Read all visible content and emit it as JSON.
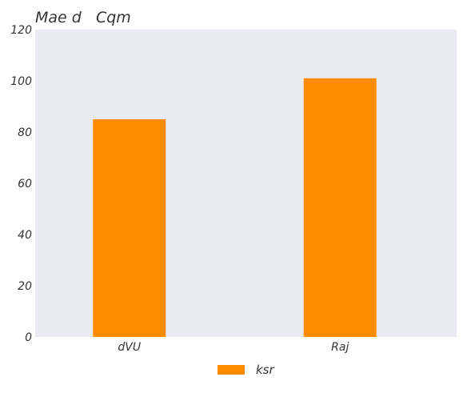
{
  "chart_data": {
    "type": "bar",
    "title": "Mae d   Cqm",
    "xlabel": "",
    "ylabel": "",
    "categories": [
      "dVU",
      "Raj"
    ],
    "series": [
      {
        "name": "ksr",
        "values": [
          85,
          101
        ],
        "color": "#ff8c00"
      }
    ],
    "ylim": [
      0,
      120
    ],
    "yticks": [
      0,
      20,
      40,
      60,
      80,
      100,
      120
    ],
    "grid": false,
    "legend": "bottom-center",
    "plot_background": "#eaeaf2"
  }
}
